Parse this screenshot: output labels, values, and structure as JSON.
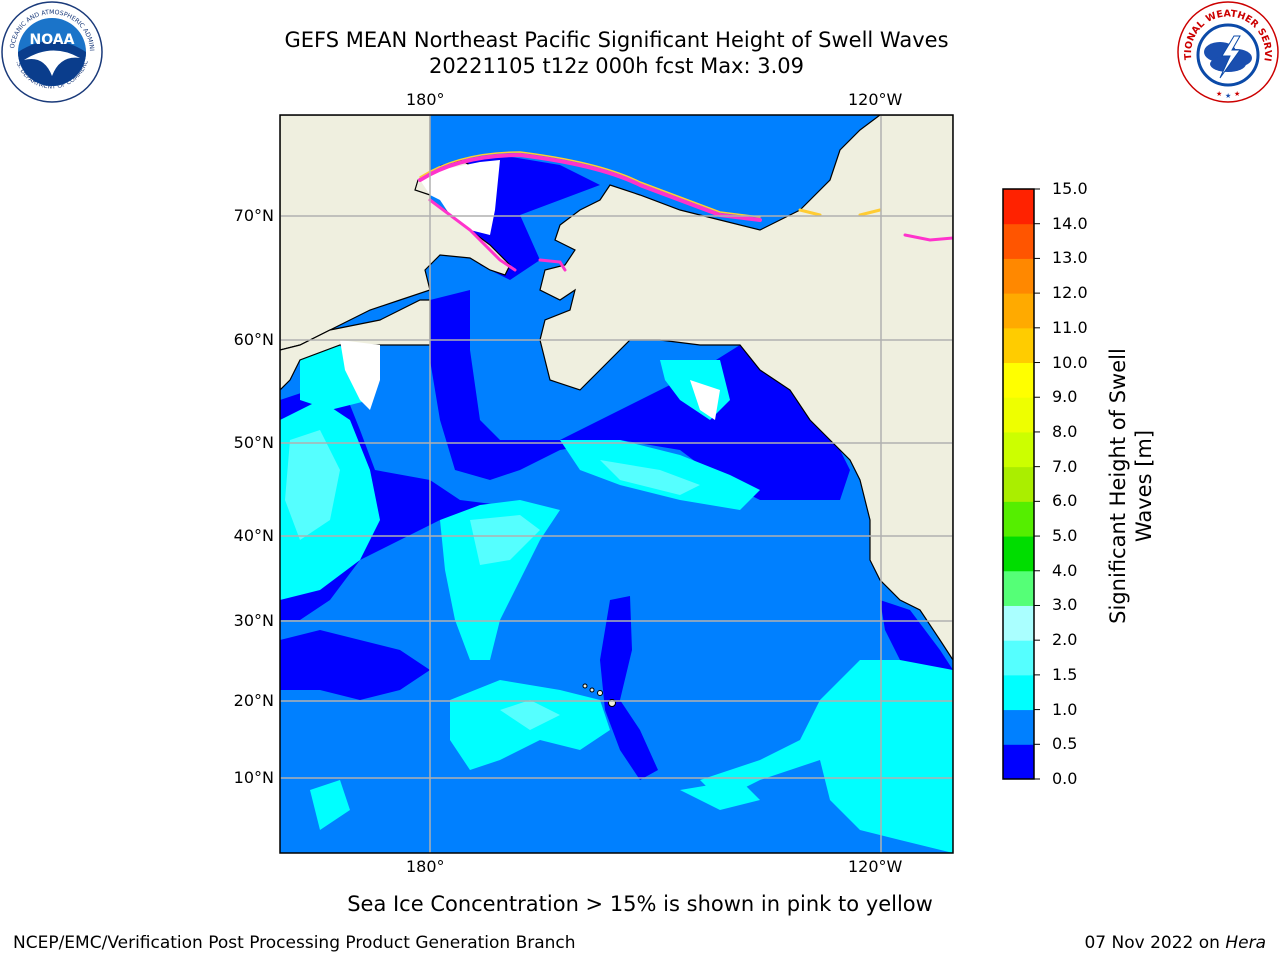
{
  "title_line1": "GEFS MEAN Northeast Pacific Significant Height of Swell Waves",
  "title_line2": "20221105 t12z 000h fcst   Max: 3.09",
  "logos": {
    "left": {
      "icon": "noaa-logo",
      "text_outer": "NATIONAL OCEANIC AND ATMOSPHERIC ADMINISTRATION",
      "text_bottom": "U.S. DEPARTMENT OF COMMERCE",
      "center": "NOAA"
    },
    "right": {
      "icon": "nws-logo",
      "text_outer": "NATIONAL WEATHER SERVICE"
    }
  },
  "map": {
    "lon_labels_top": [
      "180°",
      "120°W"
    ],
    "lon_labels_bottom": [
      "180°",
      "120°W"
    ],
    "lat_labels": [
      "70°N",
      "60°N",
      "50°N",
      "40°N",
      "30°N",
      "20°N",
      "10°N"
    ],
    "colors": {
      "land": "#efefdf",
      "ice_edge": "#ff33cc",
      "ice_yellow": "#ffcc33",
      "grid": "#b0b0b0"
    }
  },
  "colorbar": {
    "label": "Significant Height of Swell Waves [m]",
    "label_line1": "Significant Height of Swell",
    "label_line2": "Waves [m]",
    "ticks": [
      "15.0",
      "14.0",
      "13.0",
      "12.0",
      "11.0",
      "10.0",
      "9.0",
      "8.0",
      "7.0",
      "6.0",
      "5.0",
      "4.0",
      "3.0",
      "2.0",
      "1.5",
      "1.0",
      "0.5",
      "0.0"
    ],
    "colors": [
      "#0000ff",
      "#0080ff",
      "#00ffff",
      "#55ffff",
      "#aaffff",
      "#55ff77",
      "#00dd00",
      "#55ee00",
      "#aaee00",
      "#ccff00",
      "#eeff00",
      "#ffff00",
      "#ffcc00",
      "#ffaa00",
      "#ff8800",
      "#ff5500",
      "#ff2200",
      "#ff0000"
    ]
  },
  "note": "Sea Ice Concentration > 15% is shown in pink to yellow",
  "footer_left": "NCEP/EMC/Verification Post Processing Product Generation Branch",
  "footer_right_date": "07 Nov 2022 on ",
  "footer_right_host": "Hera"
}
